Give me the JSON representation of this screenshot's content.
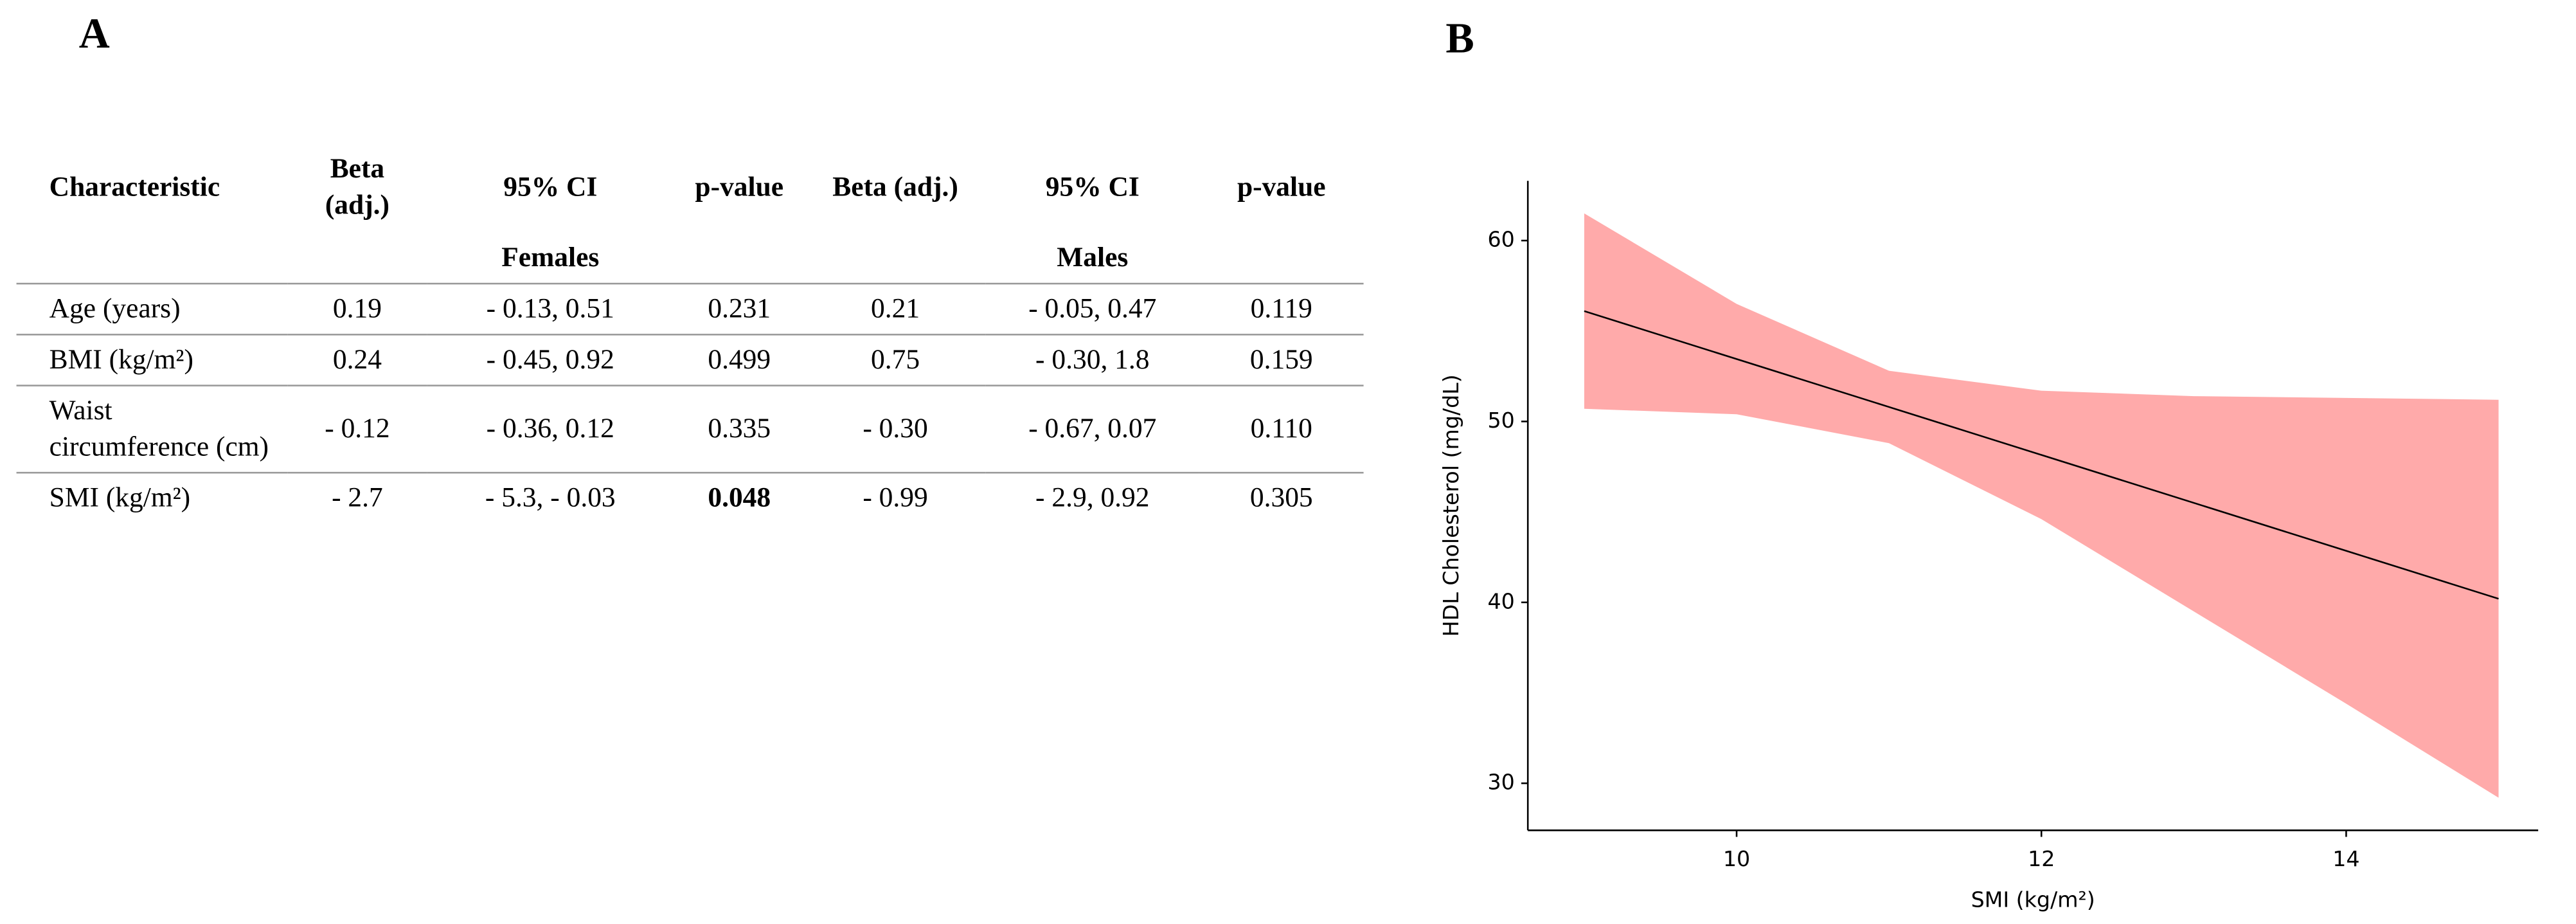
{
  "panel_a": {
    "label": "A",
    "table": {
      "header": [
        "Characteristic",
        "Beta (adj.)",
        "95% CI",
        "p-value",
        "Beta (adj.)",
        "95% CI",
        "p-value"
      ],
      "groups": [
        {
          "label": "Females",
          "column": 2
        },
        {
          "label": "Males",
          "column": 5
        }
      ],
      "rows": [
        [
          "Age (years)",
          "0.19",
          "- 0.13, 0.51",
          "0.231",
          "0.21",
          "- 0.05, 0.47",
          "0.119"
        ],
        [
          "BMI (kg/m²)",
          "0.24",
          "- 0.45, 0.92",
          "0.499",
          "0.75",
          "- 0.30, 1.8",
          "0.159"
        ],
        [
          "Waist circumference (cm)",
          "- 0.12",
          "- 0.36, 0.12",
          "0.335",
          "- 0.30",
          "- 0.67, 0.07",
          "0.110"
        ],
        [
          "SMI (kg/m²)",
          "- 2.7",
          "- 5.3, - 0.03",
          "0.048",
          "- 0.99",
          "- 2.9, 0.92",
          "0.305"
        ]
      ],
      "bold_cells": [
        [
          3,
          3
        ]
      ]
    }
  },
  "chart_data": {
    "type": "line",
    "panel_label": "B",
    "x_label": "SMI (kg/m²)",
    "y_label": "HDL Cholesterol (mg/dL)",
    "x": [
      9,
      10,
      11,
      12,
      13,
      14,
      15
    ],
    "series": [
      {
        "color": "#000000",
        "band_color": "#ffaaaa",
        "values": [
          56.1,
          53.45,
          50.8,
          48.15,
          45.5,
          42.85,
          40.2
        ],
        "upper": [
          61.5,
          56.5,
          52.8,
          51.7,
          51.4,
          51.3,
          51.2
        ],
        "lower": [
          50.7,
          50.4,
          48.8,
          44.6,
          39.5,
          34.4,
          29.2
        ]
      }
    ],
    "xlim": [
      8.63,
      15.26
    ],
    "ylim": [
      27.4,
      63.3
    ],
    "xticks": [
      10,
      12,
      14
    ],
    "yticks": [
      30,
      40,
      50,
      60
    ],
    "grid": false
  }
}
